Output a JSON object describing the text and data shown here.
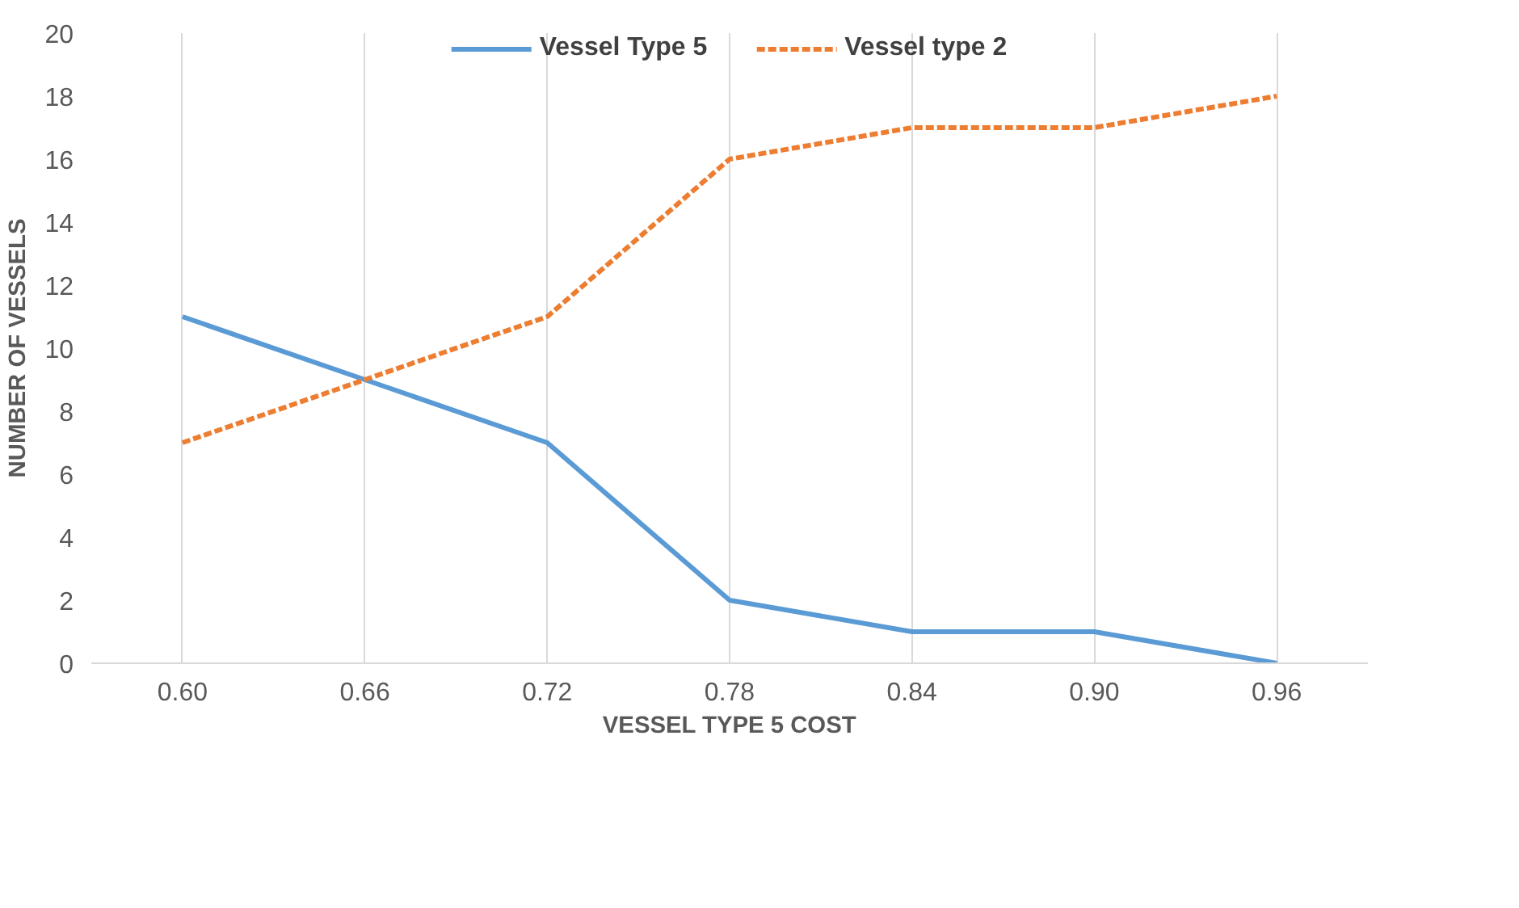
{
  "chart_data": {
    "type": "line",
    "xlabel": "VESSEL TYPE 5 COST",
    "ylabel": "NUMBER OF VESSELS",
    "categories": [
      "0.60",
      "0.66",
      "0.72",
      "0.78",
      "0.84",
      "0.90",
      "0.96"
    ],
    "series": [
      {
        "name": "Vessel Type 5",
        "color": "#5b9bd5",
        "line_style": "solid",
        "values": [
          11,
          9,
          7,
          2,
          1,
          1,
          0
        ]
      },
      {
        "name": "Vessel type 2",
        "color": "#ed7d31",
        "line_style": "dashed",
        "values": [
          7,
          9,
          11,
          16,
          17,
          17,
          18
        ]
      }
    ],
    "ylim": [
      0,
      20
    ],
    "yticks": [
      0,
      2,
      4,
      6,
      8,
      10,
      12,
      14,
      16,
      18,
      20
    ],
    "grid": "x",
    "legend": "top",
    "marker": "none"
  }
}
